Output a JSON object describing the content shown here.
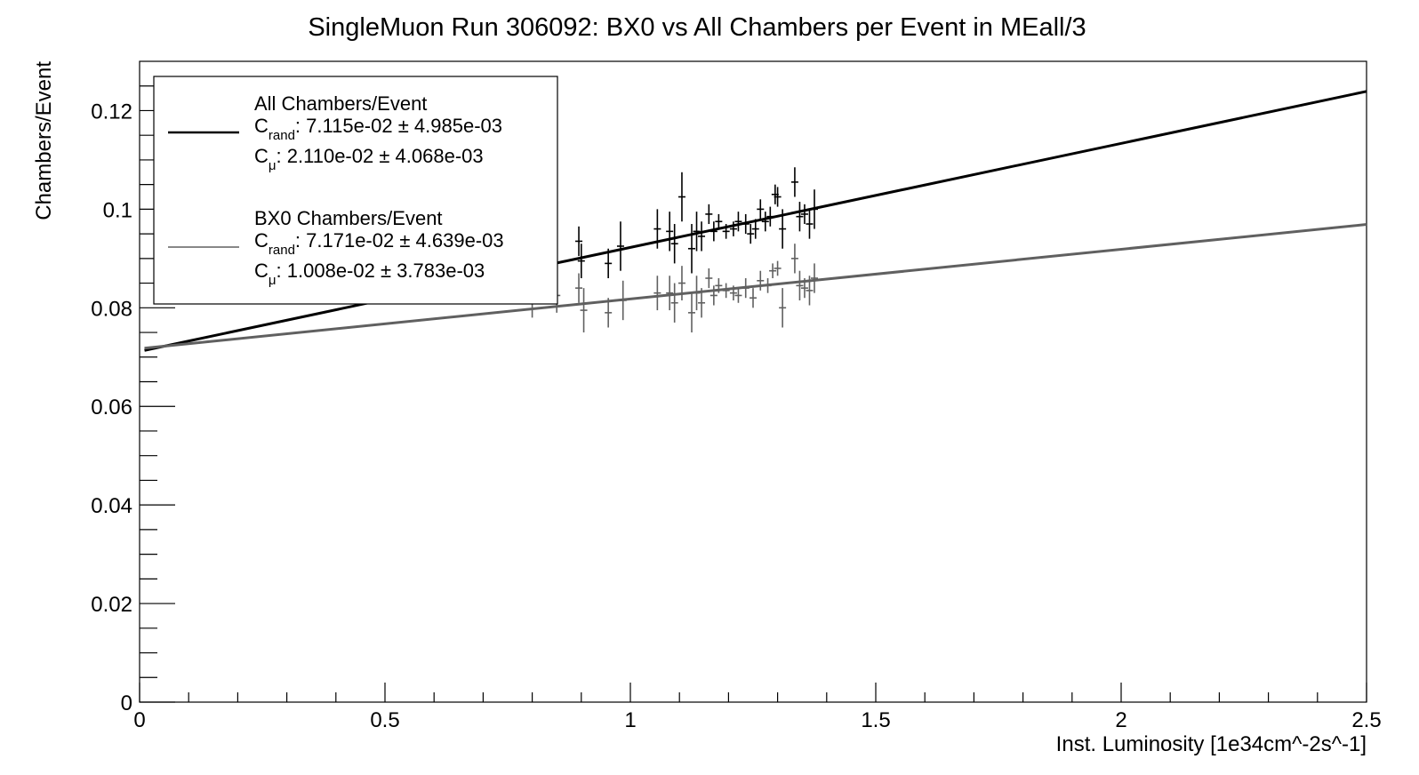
{
  "chart_data": {
    "type": "scatter",
    "title": "SingleMuon Run 306092: BX0 vs All Chambers per Event in MEall/3",
    "xlabel": "Inst. Luminosity [1e34cm^-2s^-1]",
    "ylabel": "Chambers/Event",
    "xlim": [
      0,
      2.5
    ],
    "ylim": [
      0,
      0.13
    ],
    "x_ticks": [
      0,
      0.5,
      1,
      1.5,
      2,
      2.5
    ],
    "x_tick_labels": [
      "0",
      "0.5",
      "1",
      "1.5",
      "2",
      "2.5"
    ],
    "y_ticks": [
      0,
      0.02,
      0.04,
      0.06,
      0.08,
      0.1,
      0.12
    ],
    "y_tick_labels": [
      "0",
      "0.02",
      "0.04",
      "0.06",
      "0.08",
      "0.1",
      "0.12"
    ],
    "grid": false,
    "legend_position": "top-left",
    "series": [
      {
        "name": "All Chambers/Event",
        "color": "#000000",
        "fit": {
          "x_from": 0.01,
          "x_to": 2.5,
          "intercept": 0.07115,
          "slope": 0.0211
        },
        "legend_lines": [
          {
            "label": "All Chambers/Event"
          },
          {
            "base": "C",
            "sub": "rand",
            "text": ": 7.115e-02 ± 4.985e-03"
          },
          {
            "base": "C",
            "sub": "μ",
            "text": ": 2.110e-02 ± 4.068e-03"
          }
        ],
        "points": [
          {
            "x": 0.8,
            "y": 0.0905,
            "err": 0.003
          },
          {
            "x": 0.84,
            "y": 0.093,
            "err": 0.004
          },
          {
            "x": 0.895,
            "y": 0.0935,
            "err": 0.003
          },
          {
            "x": 0.9,
            "y": 0.0895,
            "err": 0.0035
          },
          {
            "x": 0.955,
            "y": 0.089,
            "err": 0.003
          },
          {
            "x": 0.98,
            "y": 0.0925,
            "err": 0.005
          },
          {
            "x": 1.055,
            "y": 0.096,
            "err": 0.004
          },
          {
            "x": 1.08,
            "y": 0.0955,
            "err": 0.004
          },
          {
            "x": 1.09,
            "y": 0.093,
            "err": 0.004
          },
          {
            "x": 1.105,
            "y": 0.1025,
            "err": 0.005
          },
          {
            "x": 1.125,
            "y": 0.092,
            "err": 0.005
          },
          {
            "x": 1.135,
            "y": 0.0955,
            "err": 0.004
          },
          {
            "x": 1.145,
            "y": 0.0945,
            "err": 0.003
          },
          {
            "x": 1.16,
            "y": 0.099,
            "err": 0.002
          },
          {
            "x": 1.17,
            "y": 0.0955,
            "err": 0.002
          },
          {
            "x": 1.18,
            "y": 0.0975,
            "err": 0.0015
          },
          {
            "x": 1.195,
            "y": 0.0955,
            "err": 0.0015
          },
          {
            "x": 1.21,
            "y": 0.096,
            "err": 0.0015
          },
          {
            "x": 1.22,
            "y": 0.0975,
            "err": 0.002
          },
          {
            "x": 1.235,
            "y": 0.097,
            "err": 0.002
          },
          {
            "x": 1.245,
            "y": 0.095,
            "err": 0.002
          },
          {
            "x": 1.255,
            "y": 0.096,
            "err": 0.002
          },
          {
            "x": 1.265,
            "y": 0.1,
            "err": 0.002
          },
          {
            "x": 1.275,
            "y": 0.0975,
            "err": 0.002
          },
          {
            "x": 1.285,
            "y": 0.0985,
            "err": 0.002
          },
          {
            "x": 1.295,
            "y": 0.103,
            "err": 0.002
          },
          {
            "x": 1.3,
            "y": 0.1025,
            "err": 0.002
          },
          {
            "x": 1.31,
            "y": 0.096,
            "err": 0.004
          },
          {
            "x": 1.335,
            "y": 0.1055,
            "err": 0.003
          },
          {
            "x": 1.345,
            "y": 0.0985,
            "err": 0.003
          },
          {
            "x": 1.355,
            "y": 0.099,
            "err": 0.002
          },
          {
            "x": 1.365,
            "y": 0.097,
            "err": 0.003
          },
          {
            "x": 1.375,
            "y": 0.1,
            "err": 0.004
          }
        ]
      },
      {
        "name": "BX0 Chambers/Event",
        "color": "#606060",
        "fit": {
          "x_from": 0.01,
          "x_to": 2.5,
          "intercept": 0.07171,
          "slope": 0.01008
        },
        "legend_lines": [
          {
            "label": "BX0 Chambers/Event"
          },
          {
            "base": "C",
            "sub": "rand",
            "text": ": 7.171e-02 ± 4.639e-03"
          },
          {
            "base": "C",
            "sub": "μ",
            "text": ": 1.008e-02 ± 3.783e-03"
          }
        ],
        "points": [
          {
            "x": 0.8,
            "y": 0.081,
            "err": 0.003
          },
          {
            "x": 0.85,
            "y": 0.0825,
            "err": 0.0035
          },
          {
            "x": 0.895,
            "y": 0.084,
            "err": 0.003
          },
          {
            "x": 0.905,
            "y": 0.0795,
            "err": 0.0045
          },
          {
            "x": 0.955,
            "y": 0.079,
            "err": 0.003
          },
          {
            "x": 0.985,
            "y": 0.0815,
            "err": 0.004
          },
          {
            "x": 1.055,
            "y": 0.083,
            "err": 0.0035
          },
          {
            "x": 1.08,
            "y": 0.083,
            "err": 0.0035
          },
          {
            "x": 1.09,
            "y": 0.081,
            "err": 0.004
          },
          {
            "x": 1.105,
            "y": 0.085,
            "err": 0.0035
          },
          {
            "x": 1.125,
            "y": 0.079,
            "err": 0.004
          },
          {
            "x": 1.135,
            "y": 0.083,
            "err": 0.0035
          },
          {
            "x": 1.145,
            "y": 0.081,
            "err": 0.003
          },
          {
            "x": 1.16,
            "y": 0.086,
            "err": 0.002
          },
          {
            "x": 1.17,
            "y": 0.0825,
            "err": 0.002
          },
          {
            "x": 1.18,
            "y": 0.0845,
            "err": 0.0015
          },
          {
            "x": 1.195,
            "y": 0.0835,
            "err": 0.0015
          },
          {
            "x": 1.21,
            "y": 0.083,
            "err": 0.0015
          },
          {
            "x": 1.22,
            "y": 0.0825,
            "err": 0.0015
          },
          {
            "x": 1.235,
            "y": 0.084,
            "err": 0.002
          },
          {
            "x": 1.25,
            "y": 0.082,
            "err": 0.002
          },
          {
            "x": 1.265,
            "y": 0.0855,
            "err": 0.002
          },
          {
            "x": 1.28,
            "y": 0.0845,
            "err": 0.0015
          },
          {
            "x": 1.29,
            "y": 0.0875,
            "err": 0.0015
          },
          {
            "x": 1.3,
            "y": 0.088,
            "err": 0.0015
          },
          {
            "x": 1.31,
            "y": 0.08,
            "err": 0.004
          },
          {
            "x": 1.335,
            "y": 0.09,
            "err": 0.003
          },
          {
            "x": 1.345,
            "y": 0.0845,
            "err": 0.003
          },
          {
            "x": 1.355,
            "y": 0.084,
            "err": 0.002
          },
          {
            "x": 1.365,
            "y": 0.0835,
            "err": 0.003
          },
          {
            "x": 1.375,
            "y": 0.086,
            "err": 0.003
          }
        ]
      }
    ]
  }
}
